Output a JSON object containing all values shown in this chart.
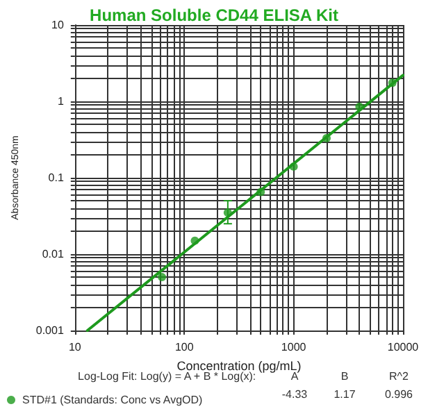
{
  "chart_data": {
    "type": "scatter",
    "title": "Human Soluble CD44 ELISA Kit",
    "xlabel": "Concentration (pg/mL)",
    "ylabel": "Absorbance 450nm",
    "log": "xy",
    "grid": true,
    "legend": "bottom left",
    "marker": "circle",
    "xlim": [
      10,
      10000
    ],
    "ylim": [
      0.001,
      10
    ],
    "xticks": [
      10,
      {
        "value": 20,
        "label": null
      },
      {
        "value": 30,
        "label": null
      },
      {
        "value": 40,
        "label": null
      },
      {
        "value": 50,
        "label": null
      },
      {
        "value": 60,
        "label": null
      },
      {
        "value": 70,
        "label": null
      },
      {
        "value": 80,
        "label": null
      },
      {
        "value": 90,
        "label": null
      },
      100,
      {
        "value": 200,
        "label": null
      },
      {
        "value": 300,
        "label": null
      },
      {
        "value": 400,
        "label": null
      },
      {
        "value": 500,
        "label": null
      },
      {
        "value": 600,
        "label": null
      },
      {
        "value": 700,
        "label": null
      },
      {
        "value": 800,
        "label": null
      },
      {
        "value": 900,
        "label": null
      },
      1000,
      {
        "value": 2000,
        "label": null
      },
      {
        "value": 3000,
        "label": null
      },
      {
        "value": 4000,
        "label": null
      },
      {
        "value": 5000,
        "label": null
      },
      {
        "value": 6000,
        "label": null
      },
      {
        "value": 7000,
        "label": null
      },
      {
        "value": 8000,
        "label": null
      },
      {
        "value": 9000,
        "label": null
      },
      10000
    ],
    "yticks": [
      0.001,
      {
        "value": 0.002,
        "label": null
      },
      {
        "value": 0.003,
        "label": null
      },
      {
        "value": 0.004,
        "label": null
      },
      {
        "value": 0.005,
        "label": null
      },
      {
        "value": 0.006,
        "label": null
      },
      {
        "value": 0.007,
        "label": null
      },
      {
        "value": 0.008,
        "label": null
      },
      {
        "value": 0.009,
        "label": null
      },
      0.01,
      {
        "value": 0.02,
        "label": null
      },
      {
        "value": 0.03,
        "label": null
      },
      {
        "value": 0.04,
        "label": null
      },
      {
        "value": 0.05,
        "label": null
      },
      {
        "value": 0.06,
        "label": null
      },
      {
        "value": 0.07,
        "label": null
      },
      {
        "value": 0.08,
        "label": null
      },
      {
        "value": 0.09,
        "label": null
      },
      0.1,
      {
        "value": 0.2,
        "label": null
      },
      {
        "value": 0.3,
        "label": null
      },
      {
        "value": 0.4,
        "label": null
      },
      {
        "value": 0.5,
        "label": null
      },
      {
        "value": 0.6,
        "label": null
      },
      {
        "value": 0.7,
        "label": null
      },
      {
        "value": 0.8,
        "label": null
      },
      {
        "value": 0.9,
        "label": null
      },
      1,
      {
        "value": 2,
        "label": null
      },
      {
        "value": 3,
        "label": null
      },
      {
        "value": 4,
        "label": null
      },
      {
        "value": 5,
        "label": null
      },
      {
        "value": 6,
        "label": null
      },
      {
        "value": 7,
        "label": null
      },
      {
        "value": 8,
        "label": null
      },
      {
        "value": 9,
        "label": null
      },
      10
    ],
    "series": [
      {
        "name": "STD#1 (Standards: Conc vs AvgOD)",
        "color": "#1e9a1e",
        "x": [
          62.5,
          125,
          250,
          500,
          1000,
          2000,
          4000,
          8000
        ],
        "values": [
          0.005,
          0.015,
          0.035,
          0.065,
          0.14,
          0.33,
          0.85,
          1.75
        ],
        "errors": [
          null,
          null,
          [
            0.025,
            0.05
          ],
          null,
          null,
          null,
          null,
          null
        ]
      },
      {
        "type": "line",
        "color": "#1e9a1e",
        "line_style": "solid",
        "marker": "none",
        "x": [
          13,
          10000
        ],
        "values": [
          0.001,
          2.2
        ]
      }
    ],
    "annotations": [
      "Log-Log Fit: Log(y) = A + B * Log(x):",
      "A",
      "B",
      "R^2",
      "-4.33",
      "1.17",
      "0.996"
    ]
  }
}
